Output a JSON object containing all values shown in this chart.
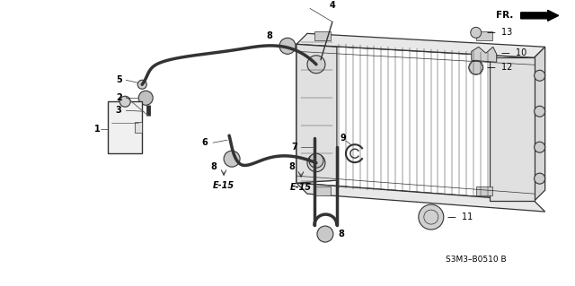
{
  "bg_color": "#ffffff",
  "line_color": "#333333",
  "label_color": "#000000",
  "diagram_code": "S3M3–B0510 B",
  "fr_label": "FR.",
  "font_size": 7
}
